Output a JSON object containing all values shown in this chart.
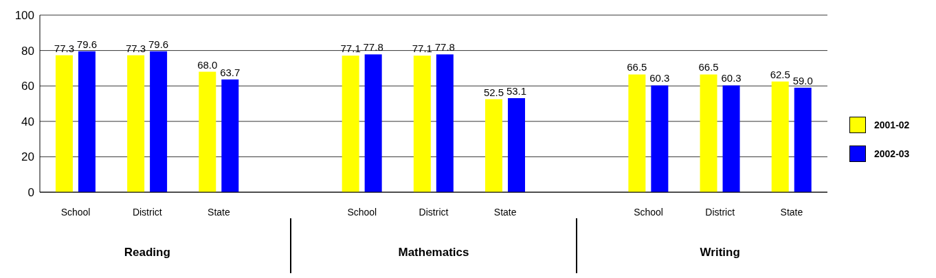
{
  "chart_data": {
    "type": "bar",
    "categories": [
      "School",
      "District",
      "State",
      null,
      "School",
      "District",
      "State",
      null,
      "School",
      "District",
      "State"
    ],
    "series": [
      {
        "name": "2001-02",
        "color": "#ffff00",
        "values": [
          77.3,
          77.3,
          68.0,
          null,
          77.1,
          77.1,
          52.5,
          null,
          66.5,
          66.5,
          62.5
        ],
        "value_labels": [
          "77.3",
          "77.3",
          "68.0",
          null,
          "77.1",
          "77.1",
          "52.5",
          null,
          "66.5",
          "66.5",
          "62.5"
        ]
      },
      {
        "name": "2002-03",
        "color": "#0000ff",
        "values": [
          79.6,
          79.6,
          63.7,
          null,
          77.8,
          77.8,
          53.1,
          null,
          60.3,
          60.3,
          59.0
        ],
        "value_labels": [
          "79.6",
          "79.6",
          "63.7",
          null,
          "77.8",
          "77.8",
          "53.1",
          null,
          "60.3",
          "60.3",
          "59.0"
        ]
      }
    ],
    "annotations": [
      "Reading",
      "Mathematics",
      "Writing"
    ],
    "ylim": [
      0,
      100
    ],
    "yticks": [
      0,
      20,
      40,
      60,
      80,
      100
    ],
    "grid": "y",
    "legend": "right"
  }
}
